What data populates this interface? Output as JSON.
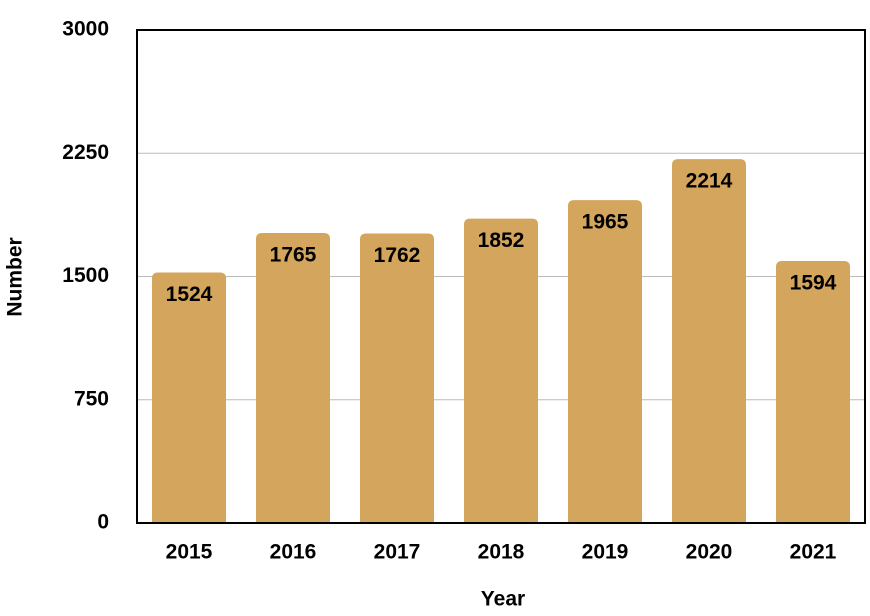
{
  "chart_data": {
    "type": "bar",
    "x_label": "Year",
    "y_label": "Number",
    "categories": [
      "2015",
      "2016",
      "2017",
      "2018",
      "2019",
      "2020",
      "2021"
    ],
    "values": [
      1524,
      1765,
      1762,
      1852,
      1965,
      2214,
      1594
    ],
    "color": "#d4a55c",
    "ylim": [
      0,
      3000
    ],
    "yticks": [
      0,
      750,
      1500,
      2250,
      3000
    ],
    "grid": true
  }
}
